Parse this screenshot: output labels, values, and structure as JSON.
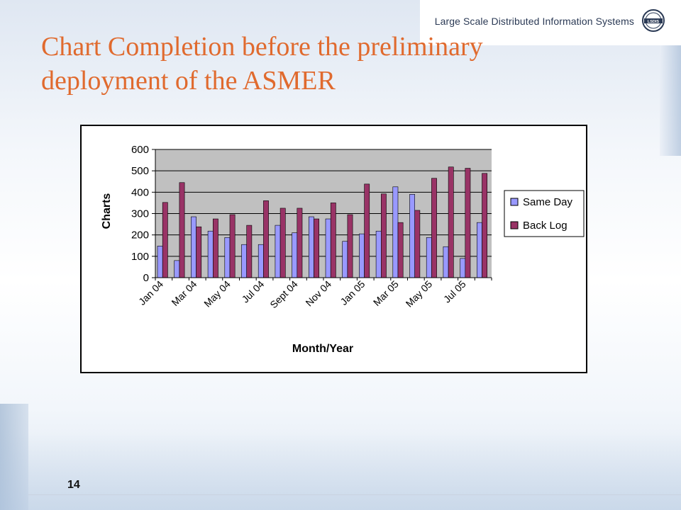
{
  "header": {
    "org_name": "Large Scale Distributed Information Systems",
    "logo_text": "LSDIS"
  },
  "slide": {
    "title": "Chart Completion before the preliminary deployment of the ASMER",
    "page_number": "14"
  },
  "colors": {
    "title": "#e06a2e",
    "plot_area": "#c0c0c0",
    "same_day": "#9999ff",
    "back_log": "#993366"
  },
  "chart_data": {
    "type": "bar",
    "title": "",
    "xlabel": "Month/Year",
    "ylabel": "Charts",
    "ylim": [
      0,
      600
    ],
    "yticks": [
      0,
      100,
      200,
      300,
      400,
      500,
      600
    ],
    "grid": true,
    "legend_position": "right",
    "categories": [
      "Jan 04",
      "Feb 04",
      "Mar 04",
      "Apr 04",
      "May 04",
      "Jun 04",
      "Jul 04",
      "Aug 04",
      "Sept 04",
      "Oct 04",
      "Nov 04",
      "Dec 04",
      "Jan 05",
      "Feb 05",
      "Mar 05",
      "Apr 05",
      "May 05",
      "Jun 05",
      "Jul 05",
      "Aug 05"
    ],
    "tick_labels": [
      "Jan 04",
      "Mar 04",
      "May 04",
      "Jul 04",
      "Sept 04",
      "Nov 04",
      "Jan 05",
      "Mar 05",
      "May 05",
      "Jul 05"
    ],
    "series": [
      {
        "name": "Same Day",
        "values": [
          148,
          80,
          285,
          218,
          188,
          155,
          155,
          245,
          210,
          285,
          275,
          170,
          205,
          218,
          425,
          390,
          188,
          145,
          90,
          258
        ]
      },
      {
        "name": "Back Log",
        "values": [
          352,
          445,
          238,
          275,
          295,
          245,
          360,
          325,
          325,
          275,
          350,
          295,
          438,
          392,
          258,
          315,
          465,
          518,
          512,
          488
        ]
      }
    ]
  }
}
